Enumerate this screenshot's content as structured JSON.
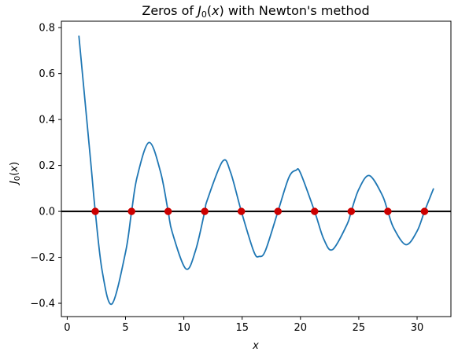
{
  "chart_data": {
    "type": "line",
    "title": "Zeros of J₀(x) with Newton's method",
    "xlabel": "x",
    "ylabel": "J₀(x)",
    "xlim": [
      -0.5,
      32.9
    ],
    "ylim": [
      -0.458,
      0.828
    ],
    "x_ticks": [
      0,
      5,
      10,
      15,
      20,
      25,
      30
    ],
    "x_tick_labels": [
      "0",
      "5",
      "10",
      "15",
      "20",
      "25",
      "30"
    ],
    "y_ticks": [
      -0.4,
      -0.2,
      0.0,
      0.2,
      0.4,
      0.6,
      0.8
    ],
    "y_tick_labels": [
      "−0.4",
      "−0.2",
      "0.0",
      "0.2",
      "0.4",
      "0.6",
      "0.8"
    ],
    "grid": false,
    "legend": "none",
    "series": [
      {
        "kind": "line",
        "color": "#1f77b4",
        "x": [
          1.0,
          2.0,
          2.405,
          3.0,
          3.832,
          5.0,
          5.52,
          6.0,
          7.016,
          8.0,
          8.654,
          9.0,
          10.173,
          11.0,
          11.792,
          12.0,
          13.324,
          14.0,
          14.931,
          16.0,
          16.471,
          17.0,
          18.071,
          19.0,
          19.616,
          20.0,
          21.212,
          22.0,
          22.76,
          24.0,
          24.352,
          25.0,
          25.904,
          27.0,
          27.493,
          28.0,
          29.047,
          30.0,
          30.635,
          31.416
        ],
        "y": [
          0.765,
          0.224,
          0.0,
          -0.26,
          -0.403,
          -0.178,
          0.0,
          0.151,
          0.3,
          0.172,
          0.0,
          -0.09,
          -0.25,
          -0.171,
          0.0,
          0.048,
          0.218,
          0.171,
          0.0,
          -0.175,
          -0.196,
          -0.17,
          0.0,
          0.147,
          0.179,
          0.167,
          0.0,
          -0.121,
          -0.166,
          -0.056,
          0.0,
          0.096,
          0.156,
          0.072,
          0.0,
          -0.073,
          -0.145,
          -0.086,
          0.0,
          0.1
        ]
      },
      {
        "kind": "hline",
        "color": "#000000",
        "y": 0.0
      },
      {
        "kind": "points",
        "color": "#d62728",
        "marker_color": "#cc0000",
        "x": [
          2.405,
          5.52,
          8.654,
          11.792,
          14.931,
          18.071,
          21.212,
          24.352,
          27.493,
          30.635
        ],
        "y": [
          0,
          0,
          0,
          0,
          0,
          0,
          0,
          0,
          0,
          0
        ]
      }
    ]
  }
}
